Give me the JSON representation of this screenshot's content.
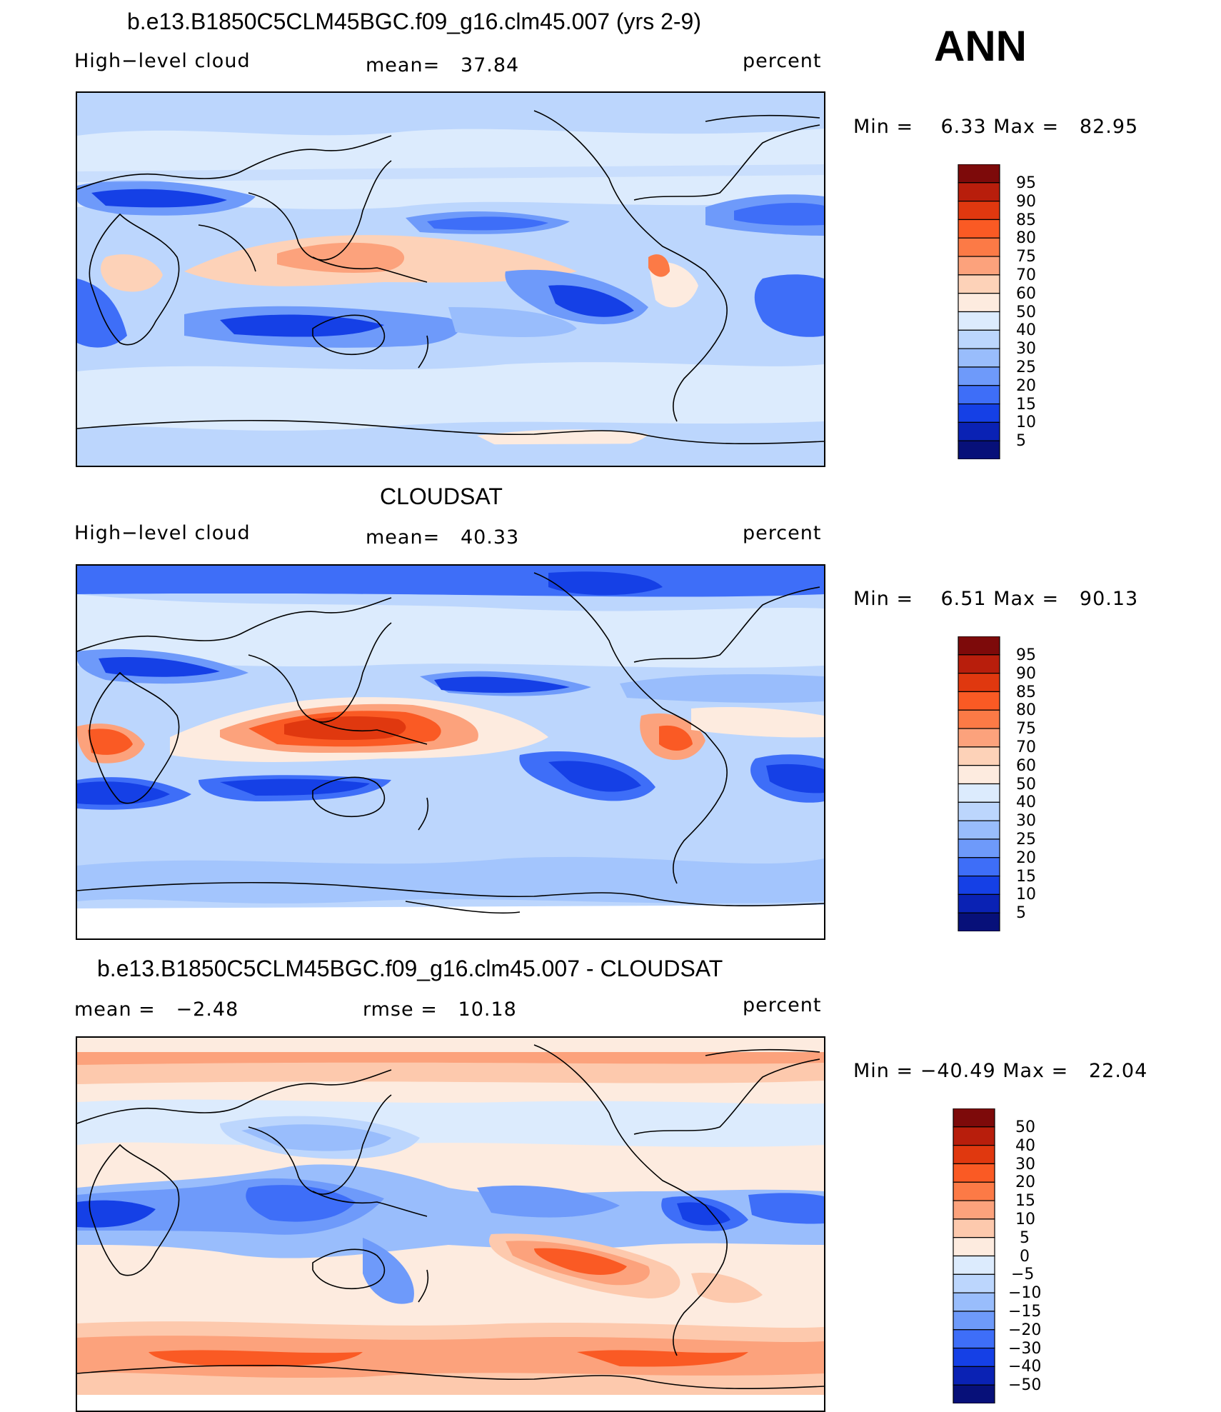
{
  "season": "ANN",
  "panels": [
    {
      "title": "b.e13.B1850C5CLM45BGC.f09_g16.clm45.007 (yrs 2-9)",
      "variable": "High−level cloud",
      "stat_text": "mean=   37.84",
      "units": "percent",
      "minmax_text": "Min =    6.33 Max =   82.95",
      "colorbar_labels": [
        "95",
        "90",
        "85",
        "80",
        "75",
        "70",
        "60",
        "50",
        "40",
        "30",
        "25",
        "20",
        "15",
        "10",
        "5"
      ]
    },
    {
      "title": "CLOUDSAT",
      "variable": "High−level cloud",
      "stat_text": "mean=   40.33",
      "units": "percent",
      "minmax_text": "Min =    6.51 Max =   90.13",
      "colorbar_labels": [
        "95",
        "90",
        "85",
        "80",
        "75",
        "70",
        "60",
        "50",
        "40",
        "30",
        "25",
        "20",
        "15",
        "10",
        "5"
      ]
    },
    {
      "title": "b.e13.B1850C5CLM45BGC.f09_g16.clm45.007 - CLOUDSAT",
      "mean_text": "mean =   −2.48",
      "rmse_text": "rmse =   10.18",
      "units": "percent",
      "minmax_text": "Min = −40.49 Max =   22.04",
      "colorbar_labels": [
        "50",
        "40",
        "30",
        "20",
        "15",
        "10",
        "5",
        "0",
        "−5",
        "−10",
        "−15",
        "−20",
        "−30",
        "−40",
        "−50"
      ]
    }
  ],
  "colors": {
    "abs_levels": [
      "#7d0a0a",
      "#b81e0c",
      "#e0380f",
      "#fa5a24",
      "#fc7a46",
      "#fca27c",
      "#fdd2b8",
      "#fdebdf",
      "#dcebfd",
      "#bcd6fd",
      "#99bdfc",
      "#6e9afa",
      "#3e6ef8",
      "#1540e6",
      "#0a22b4",
      "#071079"
    ],
    "diff_levels": [
      "#7d0a0a",
      "#b81e0c",
      "#e0380f",
      "#fa5a24",
      "#fc7a46",
      "#fca27c",
      "#fdc9ad",
      "#fdebdf",
      "#dcebfd",
      "#bcd6fd",
      "#99bdfc",
      "#6e9afa",
      "#3e6ef8",
      "#1540e6",
      "#0a22b4",
      "#071079"
    ]
  }
}
